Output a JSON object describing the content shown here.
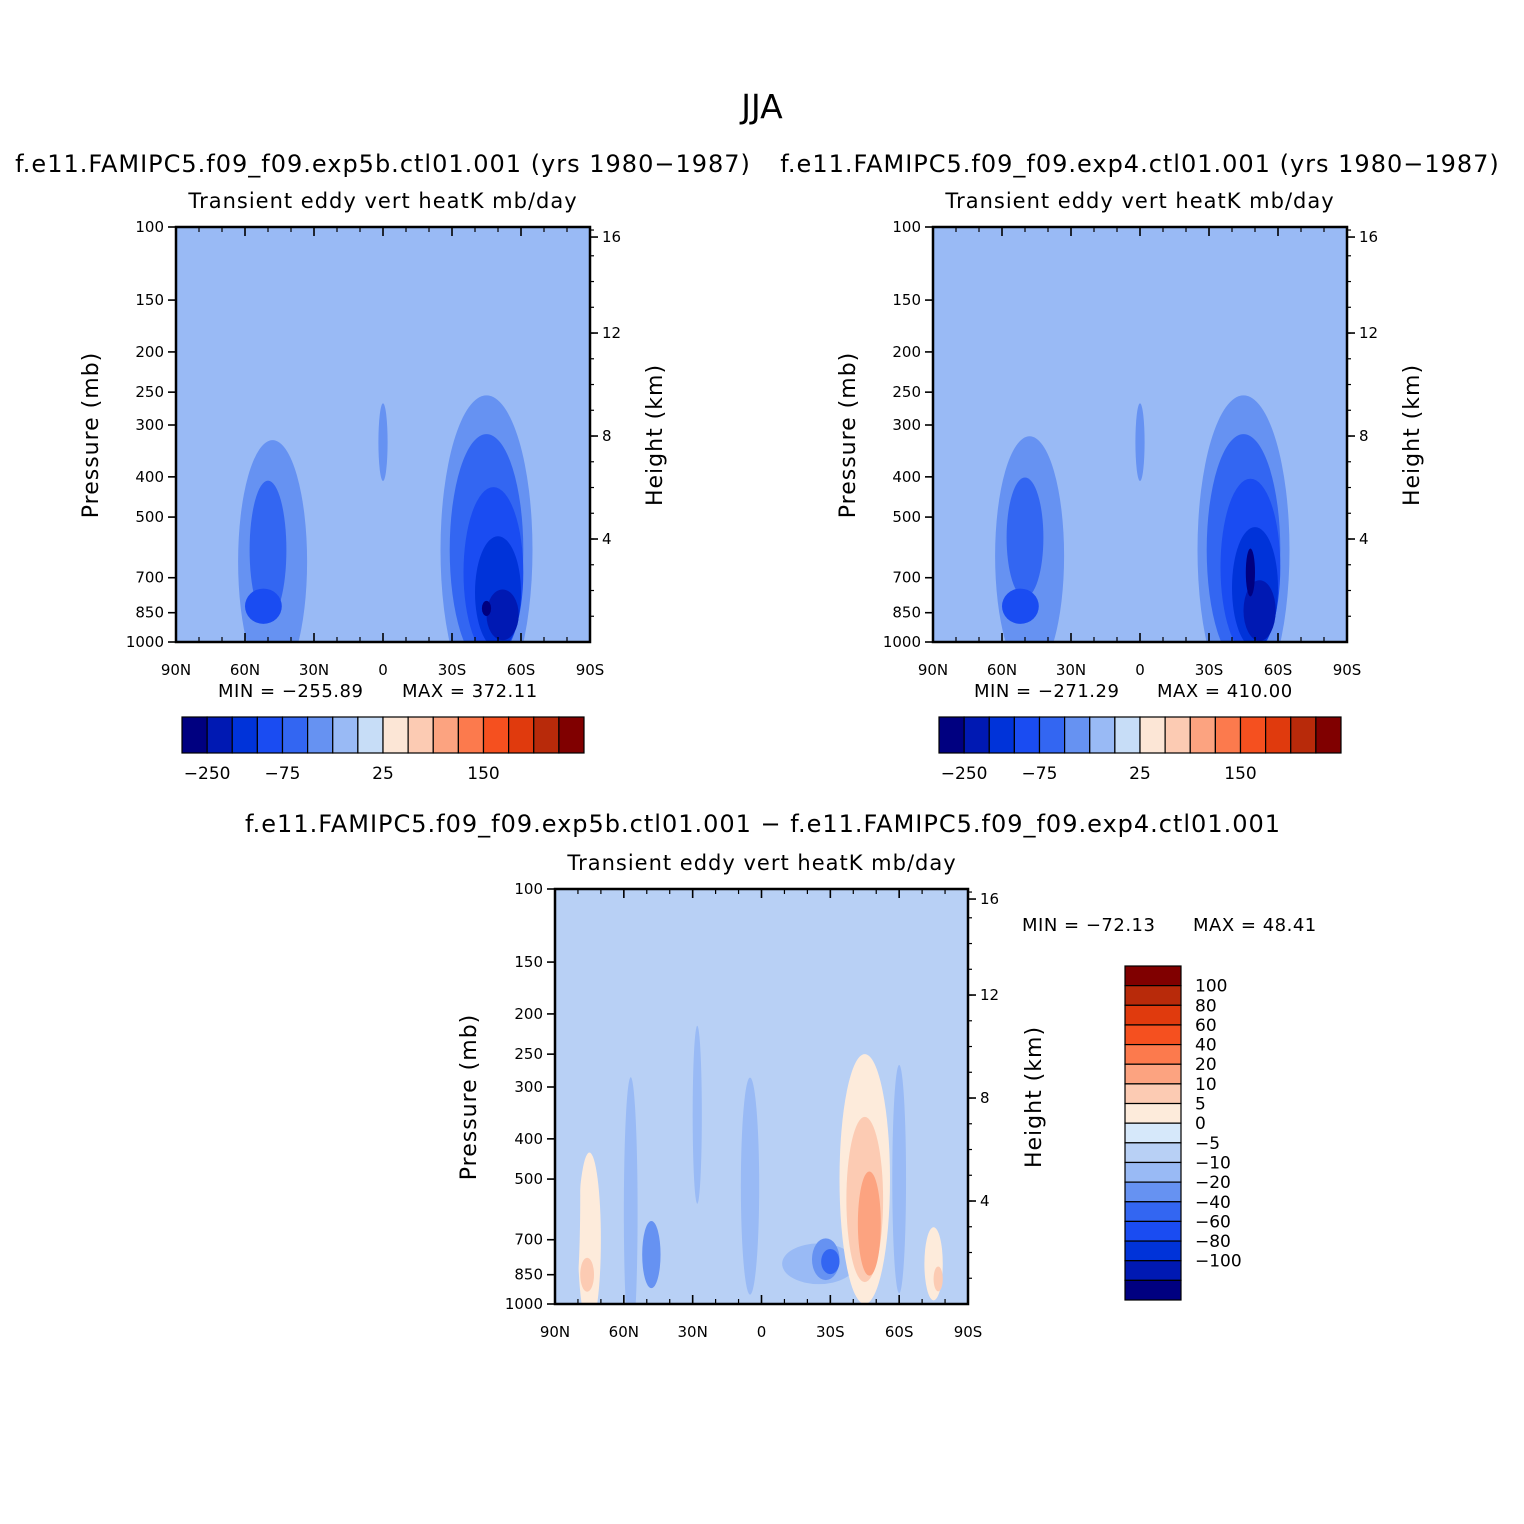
{
  "figure": {
    "title": "JJA",
    "diff_title": "f.e11.FAMIPC5.f09_f09.exp5b.ctl01.001  −  f.e11.FAMIPC5.f09_f09.exp4.ctl01.001"
  },
  "palette": {
    "main": [
      "#000080",
      "#0019B3",
      "#0033D9",
      "#1A4CF2",
      "#3366F2",
      "#6692F2",
      "#99BAF5",
      "#C7DDF7",
      "#FCE6D6",
      "#FCCBB3",
      "#FCA380",
      "#FC7A4D",
      "#F5501F",
      "#E03A0D",
      "#B82A0A",
      "#800000"
    ],
    "diff": [
      "#000080",
      "#0019B3",
      "#0033D9",
      "#1A4CF2",
      "#3366F2",
      "#6692F2",
      "#99BAF5",
      "#B8D0F5",
      "#D6E8FA",
      "#FDEBDB",
      "#FCCBB3",
      "#FCA380",
      "#FC7A4D",
      "#F5501F",
      "#E03A0D",
      "#B82A0A",
      "#800000"
    ]
  },
  "chart_data": [
    {
      "id": "panel1",
      "type": "contour",
      "title": "Transient  eddy  vert  heatK  mb/day",
      "subtitle": "f.e11.FAMIPC5.f09_f09.exp5b.ctl01.001  (yrs  1980−1987)",
      "xlabel": "",
      "ylabel": "Pressure  (mb)",
      "y2label": "Height  (km)",
      "x_ticks": [
        "90N",
        "60N",
        "30N",
        "0",
        "30S",
        "60S",
        "90S"
      ],
      "x_range": [
        90,
        -90
      ],
      "y_ticks": [
        100,
        150,
        200,
        250,
        300,
        400,
        500,
        700,
        850,
        1000
      ],
      "y_range": [
        100,
        1000
      ],
      "y2_ticks": [
        16,
        12,
        8,
        4
      ],
      "min_label": "MIN  =  −255.89",
      "max_label": "MAX  =  372.11",
      "min": -255.89,
      "max": 372.11,
      "colorbar_labels": [
        "−250",
        "−75",
        "25",
        "150"
      ],
      "features": [
        {
          "lat": 48,
          "p": 640,
          "dlat": 15,
          "dp": 380,
          "level": -2
        },
        {
          "lat": 50,
          "p": 600,
          "dlat": 8,
          "dp": 220,
          "level": -3
        },
        {
          "lat": 52,
          "p": 820,
          "dlat": 8,
          "dp": 80,
          "level": -4
        },
        {
          "lat": -45,
          "p": 600,
          "dlat": 20,
          "dp": 420,
          "level": -2
        },
        {
          "lat": -45,
          "p": 600,
          "dlat": 16,
          "dp": 340,
          "level": -3
        },
        {
          "lat": -48,
          "p": 680,
          "dlat": 13,
          "dp": 300,
          "level": -4
        },
        {
          "lat": -50,
          "p": 760,
          "dlat": 10,
          "dp": 230,
          "level": -5
        },
        {
          "lat": -52,
          "p": 860,
          "dlat": 7,
          "dp": 120,
          "level": -6
        },
        {
          "lat": -45,
          "p": 830,
          "dlat": 2,
          "dp": 35,
          "level": -7
        },
        {
          "lat": 0,
          "p": 330,
          "dlat": 2,
          "dp": 70,
          "level": -2
        }
      ]
    },
    {
      "id": "panel2",
      "type": "contour",
      "title": "Transient  eddy  vert  heatK  mb/day",
      "subtitle": "f.e11.FAMIPC5.f09_f09.exp4.ctl01.001  (yrs  1980−1987)",
      "xlabel": "",
      "ylabel": "Pressure  (mb)",
      "y2label": "Height  (km)",
      "x_ticks": [
        "90N",
        "60N",
        "30N",
        "0",
        "30S",
        "60S",
        "90S"
      ],
      "x_range": [
        90,
        -90
      ],
      "y_ticks": [
        100,
        150,
        200,
        250,
        300,
        400,
        500,
        700,
        850,
        1000
      ],
      "y_range": [
        100,
        1000
      ],
      "y2_ticks": [
        16,
        12,
        8,
        4
      ],
      "min_label": "MIN  =  −271.29",
      "max_label": "MAX  =  410.00",
      "min": -271.29,
      "max": 410.0,
      "colorbar_labels": [
        "−250",
        "−75",
        "25",
        "150"
      ],
      "features": [
        {
          "lat": 48,
          "p": 620,
          "dlat": 15,
          "dp": 360,
          "level": -2
        },
        {
          "lat": 50,
          "p": 560,
          "dlat": 8,
          "dp": 180,
          "level": -3
        },
        {
          "lat": 52,
          "p": 820,
          "dlat": 8,
          "dp": 80,
          "level": -4
        },
        {
          "lat": -45,
          "p": 600,
          "dlat": 20,
          "dp": 420,
          "level": -2
        },
        {
          "lat": -45,
          "p": 600,
          "dlat": 16,
          "dp": 340,
          "level": -3
        },
        {
          "lat": -48,
          "p": 660,
          "dlat": 13,
          "dp": 300,
          "level": -4
        },
        {
          "lat": -50,
          "p": 740,
          "dlat": 10,
          "dp": 240,
          "level": -5
        },
        {
          "lat": -52,
          "p": 840,
          "dlat": 7,
          "dp": 140,
          "level": -6
        },
        {
          "lat": -48,
          "p": 680,
          "dlat": 2,
          "dp": 90,
          "level": -7
        },
        {
          "lat": 0,
          "p": 330,
          "dlat": 2,
          "dp": 70,
          "level": -2
        }
      ]
    },
    {
      "id": "panel3",
      "type": "contour",
      "title": "Transient  eddy  vert  heatK  mb/day",
      "xlabel": "",
      "ylabel": "Pressure  (mb)",
      "y2label": "Height  (km)",
      "x_ticks": [
        "90N",
        "60N",
        "30N",
        "0",
        "30S",
        "60S",
        "90S"
      ],
      "x_range": [
        90,
        -90
      ],
      "y_ticks": [
        100,
        150,
        200,
        250,
        300,
        400,
        500,
        700,
        850,
        1000
      ],
      "y_range": [
        100,
        1000
      ],
      "y2_ticks": [
        16,
        12,
        8,
        4
      ],
      "min_label": "MIN  =  −72.13",
      "max_label": "MAX  =    48.41",
      "min": -72.13,
      "max": 48.41,
      "colorbar_labels": [
        "100",
        "80",
        "60",
        "40",
        "20",
        "10",
        "5",
        "0",
        "−5",
        "−10",
        "−20",
        "−40",
        "−60",
        "−80",
        "−100"
      ],
      "features": [
        {
          "lat": 75,
          "p": 700,
          "dlat": 5,
          "dp": 320,
          "level": 1
        },
        {
          "lat": 76,
          "p": 850,
          "dlat": 3,
          "dp": 80,
          "level": 2
        },
        {
          "lat": 57,
          "p": 600,
          "dlat": 3,
          "dp": 380,
          "level": -2
        },
        {
          "lat": 48,
          "p": 760,
          "dlat": 4,
          "dp": 140,
          "level": -3
        },
        {
          "lat": 28,
          "p": 350,
          "dlat": 2,
          "dp": 160,
          "level": -2
        },
        {
          "lat": 5,
          "p": 520,
          "dlat": 4,
          "dp": 280,
          "level": -2
        },
        {
          "lat": -25,
          "p": 800,
          "dlat": 16,
          "dp": 90,
          "level": -2
        },
        {
          "lat": -28,
          "p": 780,
          "dlat": 6,
          "dp": 90,
          "level": -3
        },
        {
          "lat": -30,
          "p": 790,
          "dlat": 4,
          "dp": 55,
          "level": -4
        },
        {
          "lat": -45,
          "p": 500,
          "dlat": 11,
          "dp": 300,
          "level": 1
        },
        {
          "lat": -45,
          "p": 560,
          "dlat": 8,
          "dp": 240,
          "level": 2
        },
        {
          "lat": -47,
          "p": 640,
          "dlat": 5,
          "dp": 180,
          "level": 3
        },
        {
          "lat": -60,
          "p": 500,
          "dlat": 3,
          "dp": 280,
          "level": -2
        },
        {
          "lat": -75,
          "p": 800,
          "dlat": 4,
          "dp": 160,
          "level": 1
        },
        {
          "lat": -77,
          "p": 870,
          "dlat": 2,
          "dp": 60,
          "level": 2
        },
        {
          "lat": 82,
          "p": 550,
          "dlat": 3,
          "dp": 300,
          "level": -1
        }
      ]
    }
  ]
}
